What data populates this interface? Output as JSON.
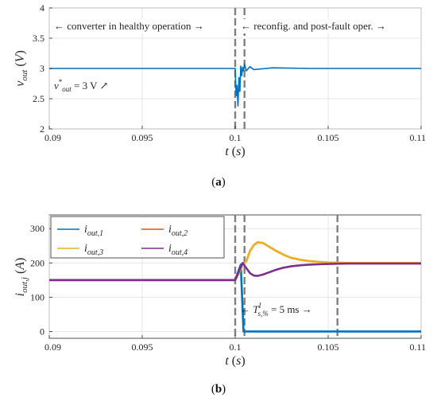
{
  "chart_data": [
    {
      "type": "line",
      "panel_label": "(a)",
      "xlabel": "t (s)",
      "ylabel": "v_out (V)",
      "xlim": [
        0.09,
        0.11
      ],
      "ylim": [
        2,
        4
      ],
      "xticks": [
        "0.09",
        "0.095",
        "0.1",
        "0.105",
        "0.11"
      ],
      "yticks": [
        "2",
        "2.5",
        "3",
        "3.5",
        "4"
      ],
      "grid": true,
      "series": [
        {
          "color": "#0072BD",
          "x": [
            0.09,
            0.1,
            0.10005,
            0.1001,
            0.10015,
            0.1002,
            0.10025,
            0.1003,
            0.10035,
            0.1004,
            0.10045,
            0.1005,
            0.1006,
            0.1008,
            0.101,
            0.102,
            0.104,
            0.11
          ],
          "y": [
            3.0,
            3.0,
            2.55,
            2.72,
            2.38,
            2.85,
            2.62,
            3.04,
            2.88,
            3.02,
            2.96,
            3.07,
            2.96,
            3.03,
            2.98,
            3.01,
            3.0,
            3.0
          ]
        }
      ],
      "vlines": [
        0.1,
        0.1005
      ],
      "annotations": {
        "left": "← converter in healthy operation →",
        "right": "← reconfig. and post-fault oper. →",
        "ref": "v*_out = 3 V ↗"
      }
    },
    {
      "type": "line",
      "panel_label": "(b)",
      "xlabel": "t (s)",
      "ylabel": "i_out,j (A)",
      "xlim": [
        0.09,
        0.11
      ],
      "ylim": [
        -20,
        340
      ],
      "xticks": [
        "0.09",
        "0.095",
        "0.1",
        "0.105",
        "0.11"
      ],
      "yticks": [
        "0",
        "100",
        "200",
        "300"
      ],
      "grid": true,
      "legend": "top-left",
      "series": [
        {
          "name": "i_out,1",
          "color": "#0072BD",
          "x": [
            0.09,
            0.1,
            0.1003,
            0.10045,
            0.11
          ],
          "y": [
            150,
            150,
            195,
            0,
            0
          ]
        },
        {
          "name": "i_out,2",
          "color": "#D95319",
          "x": [
            0.09,
            0.1,
            0.1002,
            0.1004,
            0.1006,
            0.1008,
            0.101,
            0.1012,
            0.1015,
            0.1018,
            0.1022,
            0.1026,
            0.103,
            0.1035,
            0.104,
            0.1045,
            0.105,
            0.106,
            0.108,
            0.11
          ],
          "y": [
            150,
            150,
            170,
            195,
            205,
            235,
            252,
            260,
            258,
            248,
            235,
            224,
            215,
            209,
            205,
            203,
            201,
            200,
            200,
            200
          ]
        },
        {
          "name": "i_out,3",
          "color": "#EDB120",
          "x": [
            0.09,
            0.1,
            0.1002,
            0.1004,
            0.1006,
            0.1008,
            0.101,
            0.1012,
            0.1015,
            0.1018,
            0.1022,
            0.1026,
            0.103,
            0.1035,
            0.104,
            0.1045,
            0.105,
            0.106,
            0.108,
            0.11
          ],
          "y": [
            150,
            150,
            170,
            195,
            205,
            235,
            252,
            260,
            258,
            248,
            235,
            224,
            215,
            209,
            205,
            203,
            201,
            200,
            200,
            200
          ]
        },
        {
          "name": "i_out,4",
          "color": "#7E2F8E",
          "x": [
            0.09,
            0.1,
            0.1002,
            0.1004,
            0.1006,
            0.1008,
            0.101,
            0.1012,
            0.1015,
            0.1018,
            0.1022,
            0.1026,
            0.103,
            0.1035,
            0.104,
            0.1045,
            0.105,
            0.106,
            0.108,
            0.11
          ],
          "y": [
            150,
            150,
            175,
            200,
            185,
            170,
            163,
            162,
            166,
            172,
            180,
            186,
            190,
            193,
            195,
            196,
            197,
            198,
            198,
            198
          ]
        }
      ],
      "vlines": [
        0.1,
        0.1005,
        0.1055
      ],
      "annotations": {
        "settling": "← T^I_s,% = 5 ms →"
      }
    }
  ]
}
